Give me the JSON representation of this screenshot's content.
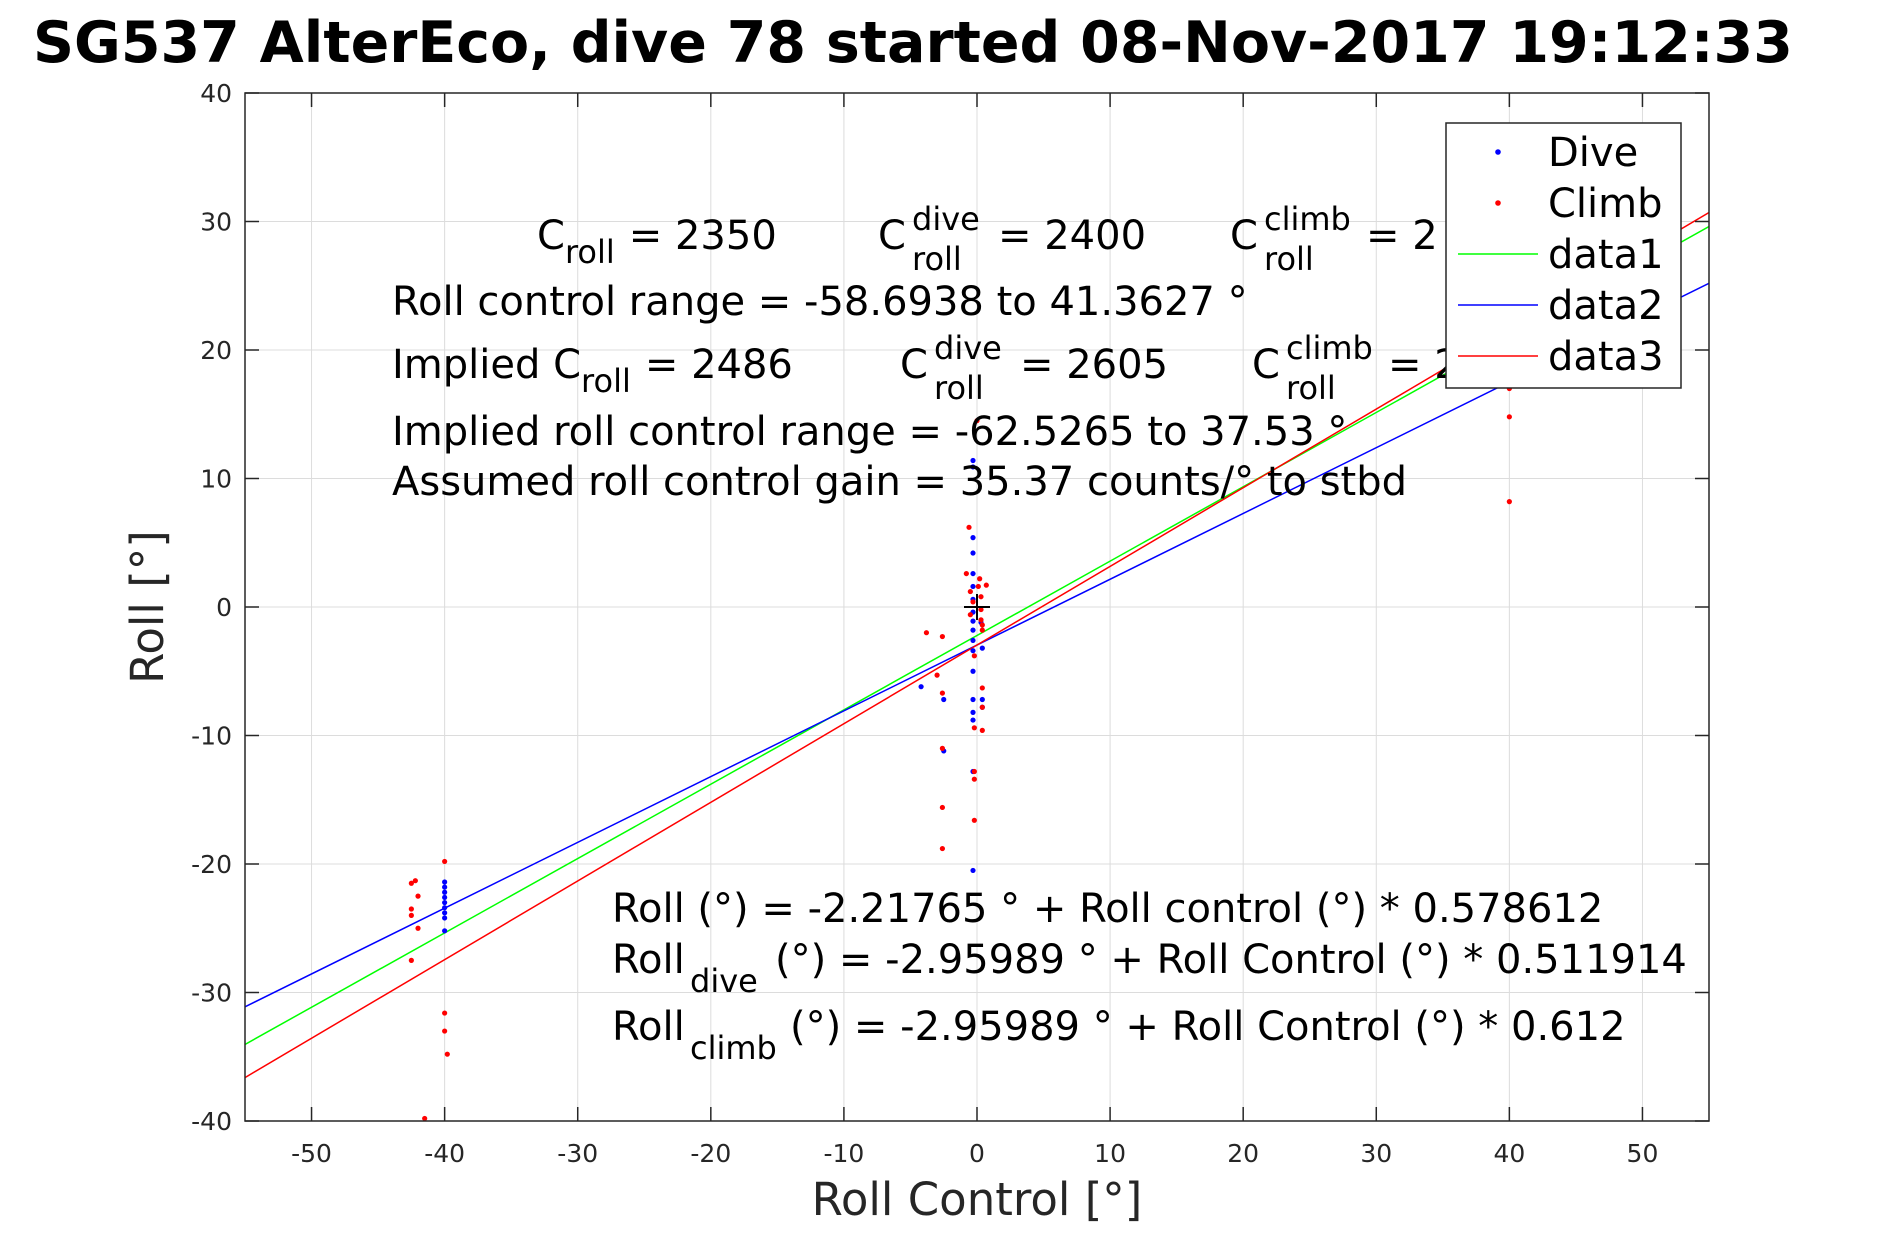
{
  "figure": {
    "title": "SG537 AlterEco, dive 78 started 08-Nov-2017 19:12:33"
  },
  "colors": {
    "dive": "#0000ff",
    "climb": "#ff0000",
    "data1": "#00ff00",
    "data2": "#0000ff",
    "data3": "#ff0000",
    "grid": "#dcdcdc",
    "axis": "#262626"
  },
  "chart_data": {
    "type": "scatter",
    "title": "SG537 AlterEco, dive 78 started 08-Nov-2017 19:12:33",
    "xlabel": "Roll Control [°]",
    "ylabel": "Roll [°]",
    "xlim": [
      -55,
      55
    ],
    "ylim": [
      -40,
      40
    ],
    "xticks": [
      -50,
      -40,
      -30,
      -20,
      -10,
      0,
      10,
      20,
      30,
      40,
      50
    ],
    "yticks": [
      -40,
      -30,
      -20,
      -10,
      0,
      10,
      20,
      30,
      40
    ],
    "grid": true,
    "legend_position": "top-right",
    "legend": [
      "Dive",
      "Climb",
      "data1",
      "data2",
      "data3"
    ],
    "series": [
      {
        "name": "Dive",
        "kind": "points",
        "color": "#0000ff",
        "points": [
          [
            -40,
            -21.4
          ],
          [
            -40,
            -21.8
          ],
          [
            -40,
            -22.2
          ],
          [
            -40,
            -22.6
          ],
          [
            -40,
            -23.0
          ],
          [
            -40,
            -23.4
          ],
          [
            -40,
            -23.8
          ],
          [
            -40,
            -24.2
          ],
          [
            -40,
            -25.2
          ],
          [
            -4.2,
            -6.2
          ],
          [
            -2.5,
            -7.2
          ],
          [
            -2.5,
            -11.2
          ],
          [
            -0.3,
            11.4
          ],
          [
            -0.3,
            10.9
          ],
          [
            -0.3,
            5.4
          ],
          [
            -0.3,
            4.2
          ],
          [
            -0.3,
            2.6
          ],
          [
            -0.3,
            1.6
          ],
          [
            -0.3,
            0.6
          ],
          [
            -0.3,
            -0.4
          ],
          [
            -0.3,
            -1.1
          ],
          [
            -0.3,
            -1.8
          ],
          [
            -0.3,
            -2.6
          ],
          [
            -0.3,
            -3.4
          ],
          [
            -0.3,
            -5.0
          ],
          [
            -0.3,
            -7.2
          ],
          [
            -0.3,
            -8.2
          ],
          [
            -0.3,
            -8.8
          ],
          [
            -0.3,
            -12.8
          ],
          [
            -0.3,
            -20.5
          ],
          [
            0.3,
            -1.2
          ],
          [
            0.4,
            -3.2
          ],
          [
            0.4,
            -7.2
          ],
          [
            0.4,
            -7.8
          ]
        ]
      },
      {
        "name": "Climb",
        "kind": "points",
        "color": "#ff0000",
        "points": [
          [
            -42.5,
            -21.5
          ],
          [
            -42.2,
            -21.3
          ],
          [
            -42.5,
            -23.5
          ],
          [
            -42.5,
            -24.0
          ],
          [
            -42.0,
            -22.5
          ],
          [
            -42.0,
            -25.0
          ],
          [
            -42.5,
            -27.5
          ],
          [
            -40.0,
            -19.8
          ],
          [
            -40.0,
            -31.6
          ],
          [
            -40.0,
            -33.0
          ],
          [
            -39.8,
            -34.8
          ],
          [
            -41.5,
            -39.8
          ],
          [
            -3.8,
            -2.0
          ],
          [
            -3.0,
            -5.3
          ],
          [
            -2.6,
            -2.3
          ],
          [
            -2.6,
            -6.7
          ],
          [
            -2.6,
            -11.0
          ],
          [
            -2.6,
            -15.6
          ],
          [
            -2.6,
            -18.8
          ],
          [
            -0.8,
            2.6
          ],
          [
            -0.6,
            6.2
          ],
          [
            -0.5,
            1.2
          ],
          [
            -0.5,
            -0.6
          ],
          [
            -0.3,
            0.4
          ],
          [
            -0.2,
            -3.8
          ],
          [
            -0.2,
            -9.4
          ],
          [
            -0.2,
            -12.8
          ],
          [
            -0.2,
            -13.4
          ],
          [
            0.0,
            14.5
          ],
          [
            -0.2,
            -16.6
          ],
          [
            0.1,
            1.6
          ],
          [
            0.2,
            2.2
          ],
          [
            0.3,
            0.8
          ],
          [
            0.3,
            -0.2
          ],
          [
            0.3,
            -1.0
          ],
          [
            0.4,
            -1.4
          ],
          [
            0.4,
            -1.8
          ],
          [
            0.4,
            -6.3
          ],
          [
            0.4,
            -7.8
          ],
          [
            0.4,
            -9.6
          ],
          [
            0.7,
            1.7
          ],
          [
            40.0,
            14.8
          ],
          [
            40.0,
            8.2
          ],
          [
            40.0,
            17.0
          ]
        ]
      },
      {
        "name": "data1",
        "kind": "line",
        "color": "#00ff00",
        "intercept": -2.21765,
        "slope": 0.578612
      },
      {
        "name": "data2",
        "kind": "line",
        "color": "#0000ff",
        "intercept": -2.95989,
        "slope": 0.511914
      },
      {
        "name": "data3",
        "kind": "line",
        "color": "#ff0000",
        "intercept": -2.95989,
        "slope": 0.612
      }
    ],
    "marker": [
      0,
      0
    ],
    "annotations": {
      "c_roll_label": "C",
      "c_roll_sub": "roll",
      "c_roll_value": "= 2350",
      "c_dive_label": "C",
      "c_dive_sup": "dive",
      "c_dive_sub": "roll",
      "c_dive_value": "= 2400",
      "c_climb_label": "C",
      "c_climb_sup": "climb",
      "c_climb_sub": "roll",
      "c_climb_value": "= 2",
      "range": "Roll control range = -58.6938 to 41.3627 °",
      "implied_label": "Implied C",
      "implied_sub": "roll",
      "implied_value": "= 2486",
      "implied_dive_label": "C",
      "implied_dive_sup": "dive",
      "implied_dive_sub": "roll",
      "implied_dive_value": "= 2605",
      "implied_climb_label": "C",
      "implied_climb_sup": "climb",
      "implied_climb_sub": "roll",
      "implied_climb_value": "= 2",
      "implied_range": "Implied roll control range = -62.5265 to 37.53 °",
      "gain": "Assumed roll control gain = 35.37 counts/° to stbd",
      "fit_all": "Roll (°) = -2.21765 ° + Roll control (°) * 0.578612",
      "fit_dive_label": "Roll",
      "fit_dive_sub": "dive",
      "fit_dive_rest": "(°) = -2.95989 ° + Roll Control (°) * 0.511914",
      "fit_climb_label": "Roll",
      "fit_climb_sub": "climb",
      "fit_climb_rest": "(°) = -2.95989 ° + Roll Control (°) * 0.612"
    }
  }
}
